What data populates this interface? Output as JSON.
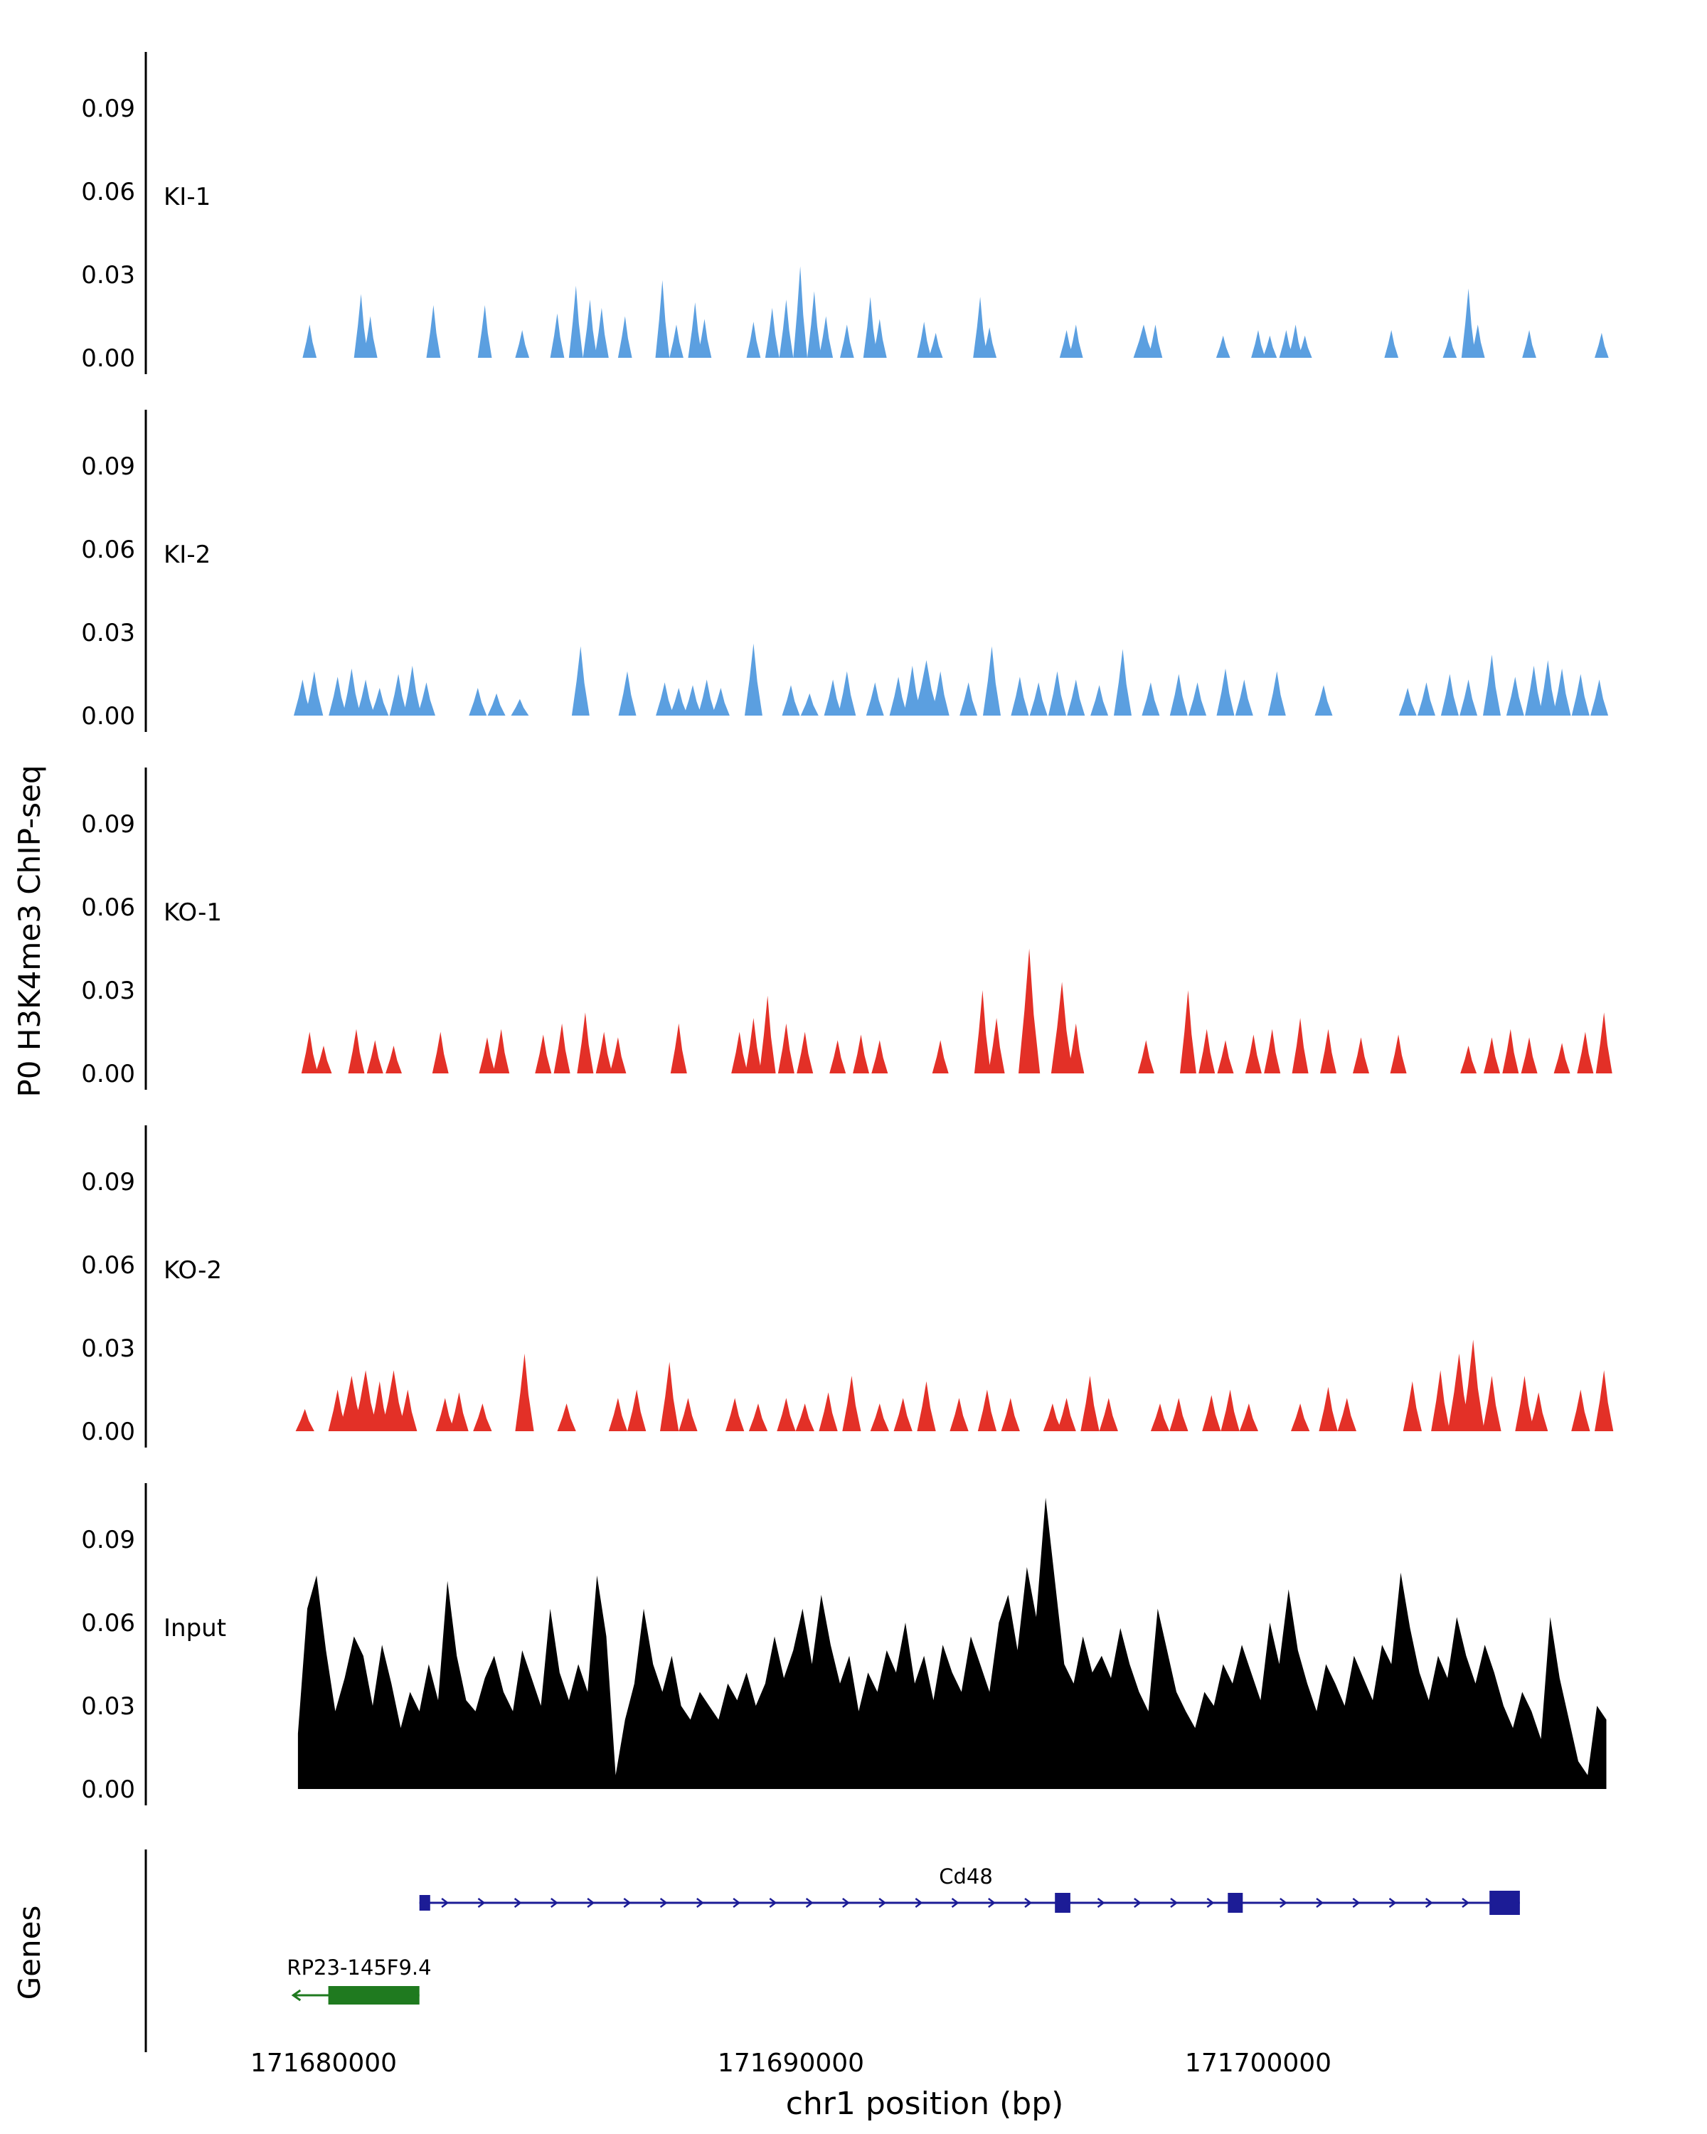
{
  "axes": {
    "y_label": "P0 H3K4me3 ChIP-seq",
    "genes_label": "Genes",
    "x_label": "chr1 position (bp)",
    "y_ticks": [
      {
        "label": "0.09",
        "value": 0.09
      },
      {
        "label": "0.06",
        "value": 0.06
      },
      {
        "label": "0.03",
        "value": 0.03
      },
      {
        "label": "0.00",
        "value": 0.0
      }
    ],
    "x_ticks": [
      {
        "label": "171680000",
        "bp": 171680000
      },
      {
        "label": "171690000",
        "bp": 171690000
      },
      {
        "label": "171700000",
        "bp": 171700000
      }
    ]
  },
  "chart_data": {
    "type": "area",
    "x_domain_bp": [
      171676200,
      171709600
    ],
    "y_lim": [
      0,
      0.105
    ],
    "tracks": [
      {
        "name": "KI-1",
        "color": "#5B9FE0",
        "style": "peaks",
        "default_halfwidth_bp": 150,
        "peaks": [
          [
            171679700,
            0.012
          ],
          [
            171680800,
            0.023
          ],
          [
            171681000,
            0.015
          ],
          [
            171682350,
            0.019
          ],
          [
            171683450,
            0.019
          ],
          [
            171684250,
            0.01
          ],
          [
            171685000,
            0.016
          ],
          [
            171685400,
            0.026
          ],
          [
            171685700,
            0.021
          ],
          [
            171685950,
            0.018
          ],
          [
            171686450,
            0.015
          ],
          [
            171687250,
            0.028
          ],
          [
            171687550,
            0.012
          ],
          [
            171687950,
            0.02
          ],
          [
            171688150,
            0.014
          ],
          [
            171689200,
            0.013
          ],
          [
            171689600,
            0.018
          ],
          [
            171689900,
            0.021
          ],
          [
            171690200,
            0.033
          ],
          [
            171690500,
            0.024
          ],
          [
            171690750,
            0.015
          ],
          [
            171691200,
            0.012
          ],
          [
            171691700,
            0.022
          ],
          [
            171691900,
            0.014
          ],
          [
            171692850,
            0.013
          ],
          [
            171693100,
            0.009
          ],
          [
            171694050,
            0.022
          ],
          [
            171694250,
            0.011
          ],
          [
            171695900,
            0.01
          ],
          [
            171696100,
            0.012
          ],
          [
            171697550,
            0.012,
            220
          ],
          [
            171697800,
            0.012
          ],
          [
            171699250,
            0.008
          ],
          [
            171700000,
            0.01
          ],
          [
            171700250,
            0.008
          ],
          [
            171700600,
            0.01
          ],
          [
            171700800,
            0.012
          ],
          [
            171701000,
            0.008
          ],
          [
            171702850,
            0.01
          ],
          [
            171704100,
            0.008
          ],
          [
            171704500,
            0.025
          ],
          [
            171704700,
            0.012
          ],
          [
            171705800,
            0.01
          ],
          [
            171707350,
            0.009
          ]
        ]
      },
      {
        "name": "KI-2",
        "color": "#5B9FE0",
        "style": "peaks",
        "default_halfwidth_bp": 190,
        "peaks": [
          [
            171679550,
            0.013
          ],
          [
            171679800,
            0.016
          ],
          [
            171680300,
            0.014
          ],
          [
            171680600,
            0.017
          ],
          [
            171680900,
            0.013
          ],
          [
            171681200,
            0.01
          ],
          [
            171681600,
            0.015
          ],
          [
            171681900,
            0.018
          ],
          [
            171682200,
            0.012
          ],
          [
            171683300,
            0.01
          ],
          [
            171683700,
            0.008
          ],
          [
            171684200,
            0.006
          ],
          [
            171685500,
            0.025
          ],
          [
            171686500,
            0.016
          ],
          [
            171687300,
            0.012
          ],
          [
            171687600,
            0.01
          ],
          [
            171687900,
            0.011
          ],
          [
            171688200,
            0.013
          ],
          [
            171688500,
            0.01
          ],
          [
            171689200,
            0.026
          ],
          [
            171690000,
            0.011
          ],
          [
            171690400,
            0.008
          ],
          [
            171690900,
            0.013
          ],
          [
            171691200,
            0.016
          ],
          [
            171691800,
            0.012
          ],
          [
            171692300,
            0.014
          ],
          [
            171692600,
            0.018
          ],
          [
            171692900,
            0.02,
            260
          ],
          [
            171693200,
            0.016
          ],
          [
            171693800,
            0.012
          ],
          [
            171694300,
            0.025
          ],
          [
            171694900,
            0.014
          ],
          [
            171695300,
            0.012
          ],
          [
            171695700,
            0.016
          ],
          [
            171696100,
            0.013
          ],
          [
            171696600,
            0.011
          ],
          [
            171697100,
            0.024
          ],
          [
            171697700,
            0.012
          ],
          [
            171698300,
            0.015
          ],
          [
            171698700,
            0.012
          ],
          [
            171699300,
            0.017
          ],
          [
            171699700,
            0.013
          ],
          [
            171700400,
            0.016
          ],
          [
            171701400,
            0.011
          ],
          [
            171703200,
            0.01
          ],
          [
            171703600,
            0.012
          ],
          [
            171704100,
            0.015
          ],
          [
            171704500,
            0.013
          ],
          [
            171705000,
            0.022
          ],
          [
            171705500,
            0.014
          ],
          [
            171705900,
            0.018
          ],
          [
            171706200,
            0.02
          ],
          [
            171706500,
            0.017
          ],
          [
            171706900,
            0.015
          ],
          [
            171707300,
            0.013
          ]
        ]
      },
      {
        "name": "KO-1",
        "color": "#E33027",
        "style": "peaks",
        "default_halfwidth_bp": 175,
        "peaks": [
          [
            171679700,
            0.015
          ],
          [
            171680000,
            0.01
          ],
          [
            171680700,
            0.016
          ],
          [
            171681100,
            0.012
          ],
          [
            171681500,
            0.01
          ],
          [
            171682500,
            0.015
          ],
          [
            171683500,
            0.013
          ],
          [
            171683800,
            0.016
          ],
          [
            171684700,
            0.014
          ],
          [
            171685100,
            0.018
          ],
          [
            171685600,
            0.022
          ],
          [
            171686000,
            0.015
          ],
          [
            171686300,
            0.013
          ],
          [
            171687600,
            0.018
          ],
          [
            171688900,
            0.015
          ],
          [
            171689200,
            0.02
          ],
          [
            171689500,
            0.028
          ],
          [
            171689900,
            0.018
          ],
          [
            171690300,
            0.015
          ],
          [
            171691000,
            0.012
          ],
          [
            171691500,
            0.014
          ],
          [
            171691900,
            0.012
          ],
          [
            171693200,
            0.012
          ],
          [
            171694100,
            0.03
          ],
          [
            171694400,
            0.02
          ],
          [
            171695100,
            0.045,
            230
          ],
          [
            171695800,
            0.033,
            230
          ],
          [
            171696100,
            0.018
          ],
          [
            171697600,
            0.012
          ],
          [
            171698500,
            0.03
          ],
          [
            171698900,
            0.016
          ],
          [
            171699300,
            0.012
          ],
          [
            171699900,
            0.014
          ],
          [
            171700300,
            0.016
          ],
          [
            171700900,
            0.02
          ],
          [
            171701500,
            0.016
          ],
          [
            171702200,
            0.013
          ],
          [
            171703000,
            0.014
          ],
          [
            171704500,
            0.01
          ],
          [
            171705000,
            0.013
          ],
          [
            171705400,
            0.016
          ],
          [
            171705800,
            0.013
          ],
          [
            171706500,
            0.011
          ],
          [
            171707000,
            0.015
          ],
          [
            171707400,
            0.022
          ]
        ]
      },
      {
        "name": "KO-2",
        "color": "#E33027",
        "style": "peaks",
        "default_halfwidth_bp": 200,
        "peaks": [
          [
            171679600,
            0.008
          ],
          [
            171680300,
            0.015
          ],
          [
            171680600,
            0.02,
            260
          ],
          [
            171680900,
            0.022,
            260
          ],
          [
            171681200,
            0.018
          ],
          [
            171681500,
            0.022,
            260
          ],
          [
            171681800,
            0.015
          ],
          [
            171682600,
            0.012
          ],
          [
            171682900,
            0.014
          ],
          [
            171683400,
            0.01
          ],
          [
            171684300,
            0.028
          ],
          [
            171685200,
            0.01
          ],
          [
            171686300,
            0.012
          ],
          [
            171686700,
            0.015
          ],
          [
            171687400,
            0.025
          ],
          [
            171687800,
            0.012
          ],
          [
            171688800,
            0.012
          ],
          [
            171689300,
            0.01
          ],
          [
            171689900,
            0.012
          ],
          [
            171690300,
            0.01
          ],
          [
            171690800,
            0.014
          ],
          [
            171691300,
            0.02
          ],
          [
            171691900,
            0.01
          ],
          [
            171692400,
            0.012
          ],
          [
            171692900,
            0.018
          ],
          [
            171693600,
            0.012
          ],
          [
            171694200,
            0.015
          ],
          [
            171694700,
            0.012
          ],
          [
            171695600,
            0.01
          ],
          [
            171695900,
            0.012
          ],
          [
            171696400,
            0.02
          ],
          [
            171696800,
            0.012
          ],
          [
            171697900,
            0.01
          ],
          [
            171698300,
            0.012
          ],
          [
            171699000,
            0.013
          ],
          [
            171699400,
            0.015
          ],
          [
            171699800,
            0.01
          ],
          [
            171700900,
            0.01
          ],
          [
            171701500,
            0.016
          ],
          [
            171701900,
            0.012
          ],
          [
            171703300,
            0.018
          ],
          [
            171703900,
            0.022
          ],
          [
            171704300,
            0.028,
            240
          ],
          [
            171704600,
            0.033,
            240
          ],
          [
            171705000,
            0.02
          ],
          [
            171705700,
            0.02
          ],
          [
            171706000,
            0.014
          ],
          [
            171706900,
            0.015
          ],
          [
            171707400,
            0.022
          ]
        ]
      },
      {
        "name": "Input",
        "color": "#000000",
        "style": "profile",
        "x_start_bp": 171679450,
        "x_step_bp": 200,
        "values": [
          0.02,
          0.065,
          0.077,
          0.05,
          0.028,
          0.04,
          0.055,
          0.048,
          0.03,
          0.052,
          0.038,
          0.022,
          0.035,
          0.028,
          0.045,
          0.032,
          0.075,
          0.048,
          0.032,
          0.028,
          0.04,
          0.048,
          0.035,
          0.028,
          0.05,
          0.04,
          0.03,
          0.065,
          0.042,
          0.032,
          0.045,
          0.035,
          0.077,
          0.055,
          0.005,
          0.025,
          0.038,
          0.065,
          0.045,
          0.035,
          0.048,
          0.03,
          0.025,
          0.035,
          0.03,
          0.025,
          0.038,
          0.032,
          0.042,
          0.03,
          0.038,
          0.055,
          0.04,
          0.05,
          0.065,
          0.045,
          0.07,
          0.052,
          0.038,
          0.048,
          0.028,
          0.042,
          0.035,
          0.05,
          0.042,
          0.06,
          0.038,
          0.048,
          0.032,
          0.052,
          0.042,
          0.035,
          0.055,
          0.045,
          0.035,
          0.06,
          0.07,
          0.05,
          0.08,
          0.062,
          0.105,
          0.075,
          0.045,
          0.038,
          0.055,
          0.042,
          0.048,
          0.04,
          0.058,
          0.045,
          0.035,
          0.028,
          0.065,
          0.05,
          0.035,
          0.028,
          0.022,
          0.035,
          0.03,
          0.045,
          0.038,
          0.052,
          0.042,
          0.032,
          0.06,
          0.045,
          0.072,
          0.05,
          0.038,
          0.028,
          0.045,
          0.038,
          0.03,
          0.048,
          0.04,
          0.032,
          0.052,
          0.045,
          0.078,
          0.058,
          0.042,
          0.032,
          0.048,
          0.04,
          0.062,
          0.048,
          0.038,
          0.052,
          0.042,
          0.03,
          0.022,
          0.035,
          0.028,
          0.018,
          0.062,
          0.04,
          0.025,
          0.01,
          0.005,
          0.03,
          0.025
        ]
      }
    ],
    "genes": [
      {
        "name": "Cd48",
        "color": "#1C1C96",
        "strand": "+",
        "start_bp": 171682050,
        "end_bp": 171705600,
        "exons": [
          [
            171682050,
            171682280,
            22
          ],
          [
            171695650,
            171695980,
            28
          ],
          [
            171699350,
            171699670,
            28
          ],
          [
            171704950,
            171705600,
            34
          ]
        ]
      },
      {
        "name": "RP23-145F9.4",
        "color": "#1F7A1F",
        "strand": "-",
        "start_bp": 171679350,
        "end_bp": 171682050,
        "exons": [
          [
            171680100,
            171682050,
            26
          ]
        ]
      }
    ]
  }
}
